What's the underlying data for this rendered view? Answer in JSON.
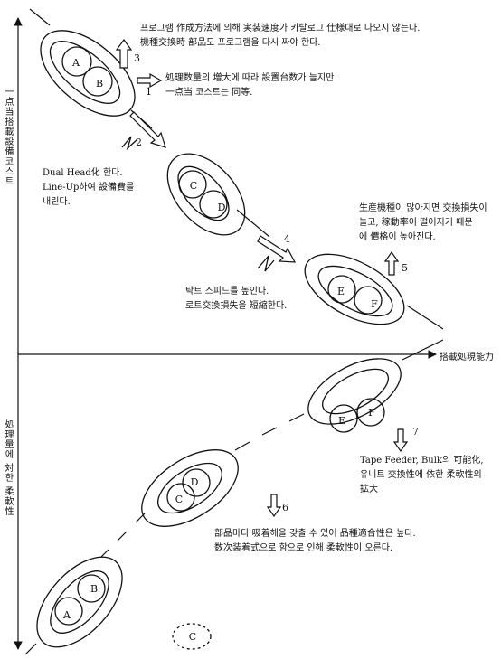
{
  "axes": {
    "top_y_label": "一点当搭載設備코스트",
    "bottom_y_label": "処理量에 対한 柔軟性",
    "x_label": "搭載処現能力"
  },
  "nodes": [
    {
      "letter": "A"
    },
    {
      "letter": "B"
    },
    {
      "letter": "C"
    },
    {
      "letter": "D"
    },
    {
      "letter": "E"
    },
    {
      "letter": "F"
    },
    {
      "letter": "E"
    },
    {
      "letter": "F"
    },
    {
      "letter": "C"
    },
    {
      "letter": "D"
    },
    {
      "letter": "A"
    },
    {
      "letter": "B"
    },
    {
      "letter": "C"
    }
  ],
  "steps": [
    "1",
    "2",
    "3",
    "4",
    "5",
    "6",
    "7"
  ],
  "notes": {
    "note_3": "프로그램 作成方法에 의해 実装速度가 카탈로그 仕様대로 나오지 않는다.\n機種交換時 部品도 프로그램을 다시 짜야 한다.",
    "note_1": "処理数量의 増大에 따라 設置台数가 늘지만\n一点当 코스트는 同等.",
    "note_2": "Dual Head化 한다.\nLine-Up하여 設備費를\n내린다.",
    "note_5": "生産機種이 많아지면 交換損失이\n늘고, 稼動率이 떨어지기 때문\n에 價格이 높아진다.",
    "note_4": "탁트 스피드를 높인다.\n로트交換損失을 短縮한다.",
    "note_7": "Tape Feeder, Bulk의 可能化,\n유니트 交換性에 依한 柔軟性의\n拡大",
    "note_6": "部品마다 吸着헤을 갖출 수 있어 品種適合性은 높다.\n数次装着式으로 함으로 인해 柔軟性이 오른다."
  }
}
